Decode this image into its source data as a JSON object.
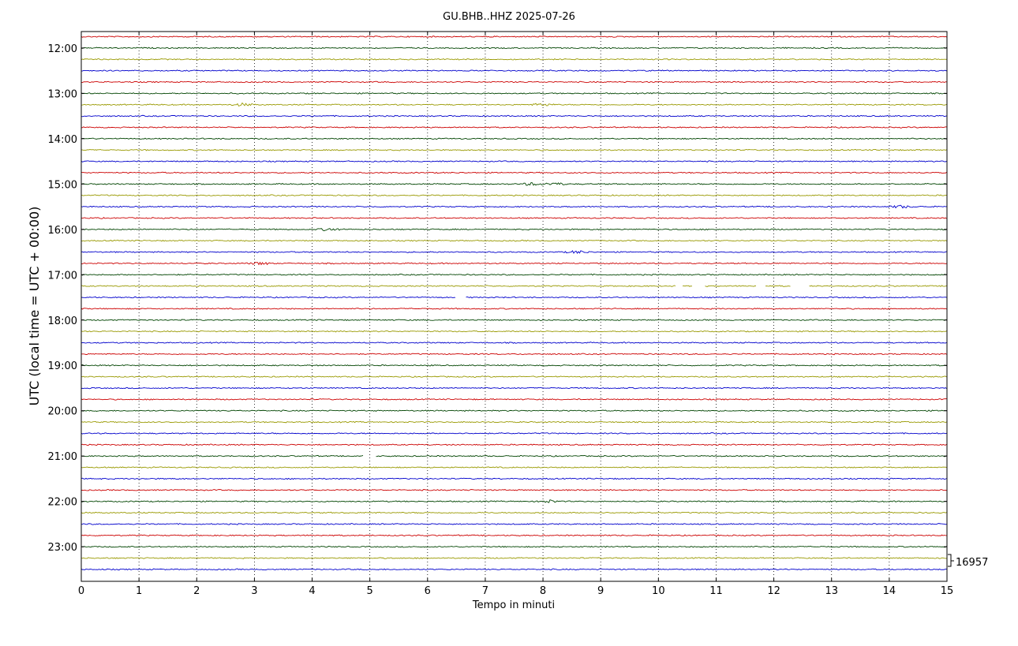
{
  "chart_data": {
    "type": "line",
    "title": "GU.BHB..HHZ 2025-07-26",
    "xlabel": "Tempo in minuti",
    "ylabel": "UTC (local time = UTC + 00:00)",
    "xlim": [
      0,
      15
    ],
    "x_ticks": [
      "0",
      "1",
      "2",
      "3",
      "4",
      "5",
      "6",
      "7",
      "8",
      "9",
      "10",
      "11",
      "12",
      "13",
      "14",
      "15"
    ],
    "y_ticks": [
      "12:00",
      "13:00",
      "14:00",
      "15:00",
      "16:00",
      "17:00",
      "18:00",
      "19:00",
      "20:00",
      "21:00",
      "22:00",
      "23:00"
    ],
    "trace_start": "11:45",
    "trace_interval_minutes": 15,
    "trace_count": 48,
    "colors": [
      "#cc0000",
      "#004400",
      "#999900",
      "#0000cc"
    ],
    "grid": "x-dotted",
    "scale_label": "16957",
    "gaps": [
      {
        "trace": "17:15",
        "from_min": 10.3,
        "to_min": 10.4
      },
      {
        "trace": "17:15",
        "from_min": 10.6,
        "to_min": 10.8
      },
      {
        "trace": "17:15",
        "from_min": 11.7,
        "to_min": 11.85
      },
      {
        "trace": "17:15",
        "from_min": 12.3,
        "to_min": 12.6
      },
      {
        "trace": "17:30",
        "from_min": 6.5,
        "to_min": 6.65
      },
      {
        "trace": "21:00",
        "from_min": 4.9,
        "to_min": 5.1
      }
    ],
    "events": [
      {
        "trace": "13:15",
        "at_min": 8.0
      },
      {
        "trace": "13:15",
        "at_min": 2.8
      },
      {
        "trace": "15:00",
        "at_min": 7.8
      },
      {
        "trace": "15:00",
        "at_min": 8.2
      },
      {
        "trace": "15:30",
        "at_min": 14.2
      },
      {
        "trace": "16:00",
        "at_min": 4.3
      },
      {
        "trace": "16:30",
        "at_min": 8.6
      },
      {
        "trace": "16:45",
        "at_min": 3.1
      },
      {
        "trace": "22:00",
        "at_min": 8.1
      }
    ]
  }
}
